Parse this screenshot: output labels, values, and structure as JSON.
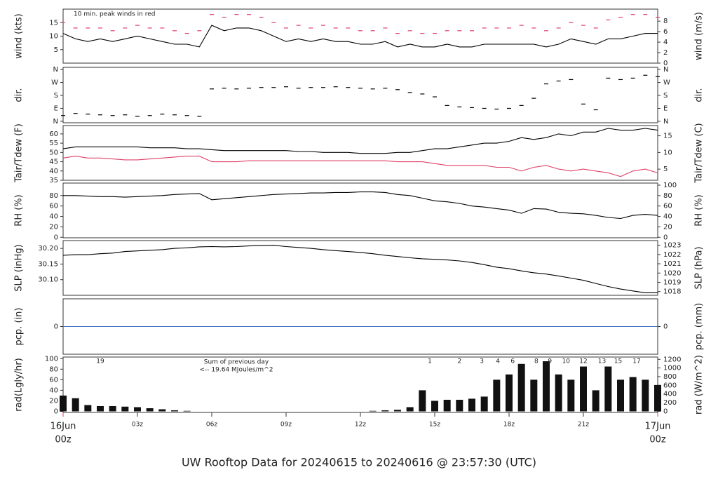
{
  "title": "UW Rooftop Data for 20240615  to  20240616 @ 23:57:30  (UTC)",
  "x_axis": {
    "xlim": [
      0,
      24
    ],
    "xticks": [
      {
        "value": 0,
        "label": "00z"
      },
      {
        "value": 3,
        "label": "03z"
      },
      {
        "value": 6,
        "label": "06z"
      },
      {
        "value": 9,
        "label": "09z"
      },
      {
        "value": 12,
        "label": "12z"
      },
      {
        "value": 15,
        "label": "15z"
      },
      {
        "value": 18,
        "label": "18z"
      },
      {
        "value": 21,
        "label": "21z"
      },
      {
        "value": 24,
        "label": "00z"
      }
    ],
    "date_labels": [
      {
        "x": 0,
        "label": "16Jun"
      },
      {
        "x": 24,
        "label": "17Jun"
      }
    ],
    "date_color": "#e0406a"
  },
  "chart_data": [
    {
      "type": "line",
      "ylabel": "wind (kts)",
      "y2label": "wind (m/s)",
      "annotation": "10 min. peak winds in red",
      "ylim": [
        0,
        20
      ],
      "yticks": [
        5,
        10,
        15
      ],
      "y2lim": [
        0,
        10.29
      ],
      "y2ticks": [
        0,
        2,
        4,
        6,
        8
      ],
      "x": [
        0,
        0.5,
        1,
        1.5,
        2,
        2.5,
        3,
        3.5,
        4,
        4.5,
        5,
        5.5,
        6,
        6.5,
        7,
        7.5,
        8,
        8.5,
        9,
        9.5,
        10,
        10.5,
        11,
        11.5,
        12,
        12.5,
        13,
        13.5,
        14,
        14.5,
        15,
        15.5,
        16,
        16.5,
        17,
        17.5,
        18,
        18.5,
        19,
        19.5,
        20,
        20.5,
        21,
        21.5,
        22,
        22.5,
        23,
        23.5,
        24
      ],
      "series": [
        {
          "color": "#000000",
          "values": [
            11,
            9,
            8,
            9,
            8,
            9,
            10,
            9,
            8,
            7,
            7,
            6,
            14,
            12,
            13,
            13,
            12,
            10,
            8,
            9,
            8,
            9,
            8,
            8,
            7,
            7,
            8,
            6,
            7,
            6,
            6,
            7,
            6,
            6,
            7,
            7,
            7,
            7,
            7,
            6,
            7,
            9,
            8,
            7,
            9,
            9,
            10,
            11,
            11
          ]
        },
        {
          "color": "#e0406a",
          "marker": "dash",
          "values": [
            15,
            13,
            13,
            13,
            12,
            13,
            14,
            13,
            13,
            12,
            11,
            12,
            18,
            17,
            18,
            18,
            17,
            15,
            13,
            14,
            13,
            14,
            13,
            13,
            12,
            12,
            13,
            11,
            12,
            11,
            11,
            12,
            12,
            12,
            13,
            13,
            13,
            14,
            13,
            12,
            13,
            15,
            14,
            13,
            16,
            17,
            18,
            18,
            17
          ]
        }
      ]
    },
    {
      "type": "scatter",
      "ylabel": "dir.",
      "y2label": "dir.",
      "ylim": [
        -10,
        375
      ],
      "yticks": [
        {
          "value": 0,
          "label": "N"
        },
        {
          "value": 90,
          "label": "E"
        },
        {
          "value": 180,
          "label": "S"
        },
        {
          "value": 270,
          "label": "W"
        },
        {
          "value": 360,
          "label": "N"
        }
      ],
      "y2lim": [
        -10,
        375
      ],
      "y2ticks": [
        {
          "value": 0,
          "label": "N"
        },
        {
          "value": 90,
          "label": "E"
        },
        {
          "value": 180,
          "label": "S"
        },
        {
          "value": 270,
          "label": "W"
        },
        {
          "value": 360,
          "label": "N"
        }
      ],
      "x": [
        0,
        0.5,
        1,
        1.5,
        2,
        2.5,
        3,
        3.5,
        4,
        4.5,
        5,
        5.5,
        6,
        6.5,
        7,
        7.5,
        8,
        8.5,
        9,
        9.5,
        10,
        10.5,
        11,
        11.5,
        12,
        12.5,
        13,
        13.5,
        14,
        14.5,
        15,
        15.5,
        16,
        16.5,
        17,
        17.5,
        18,
        18.5,
        19,
        19.5,
        20,
        20.5,
        21,
        21.5,
        22,
        22.5,
        23,
        23.5,
        24
      ],
      "series": [
        {
          "color": "#000000",
          "values": [
            40,
            55,
            50,
            45,
            40,
            45,
            35,
            40,
            50,
            45,
            40,
            35,
            225,
            230,
            225,
            230,
            235,
            235,
            240,
            230,
            235,
            235,
            240,
            235,
            230,
            225,
            230,
            220,
            200,
            190,
            170,
            110,
            100,
            95,
            90,
            85,
            90,
            110,
            160,
            260,
            280,
            290,
            120,
            80,
            300,
            290,
            300,
            320,
            310
          ]
        }
      ]
    },
    {
      "type": "line",
      "ylabel": "Tair/Tdew (F)",
      "y2label": "Tair/Tdew (C)",
      "ylim": [
        35,
        64.5
      ],
      "yticks": [
        35,
        40,
        45,
        50,
        55,
        60
      ],
      "y2lim": [
        1.67,
        18.06
      ],
      "y2ticks": [
        5,
        10,
        15
      ],
      "x": [
        0,
        0.5,
        1,
        1.5,
        2,
        2.5,
        3,
        3.5,
        4,
        4.5,
        5,
        5.5,
        6,
        6.5,
        7,
        7.5,
        8,
        8.5,
        9,
        9.5,
        10,
        10.5,
        11,
        11.5,
        12,
        12.5,
        13,
        13.5,
        14,
        14.5,
        15,
        15.5,
        16,
        16.5,
        17,
        17.5,
        18,
        18.5,
        19,
        19.5,
        20,
        20.5,
        21,
        21.5,
        22,
        22.5,
        23,
        23.5,
        24
      ],
      "series": [
        {
          "color": "#000000",
          "values": [
            52,
            53,
            53,
            53,
            53,
            53,
            53,
            52.5,
            52.5,
            52.5,
            52,
            52,
            51.5,
            51,
            51,
            51,
            51,
            51,
            51,
            50.5,
            50.5,
            50,
            50,
            50,
            49.5,
            49.5,
            49.5,
            50,
            50,
            51,
            52,
            52,
            53,
            54,
            55,
            55,
            56,
            58,
            57,
            58,
            60,
            59,
            61,
            61,
            63,
            62,
            62,
            63,
            62
          ]
        },
        {
          "color": "#e0406a",
          "values": [
            47,
            48,
            47,
            47,
            46.5,
            46,
            46,
            46.5,
            47,
            47.5,
            48,
            48,
            45,
            45,
            45,
            45.5,
            45.5,
            45.5,
            45.5,
            45.5,
            45.5,
            45.5,
            45.5,
            45.5,
            45.5,
            45.5,
            45.5,
            45,
            45,
            45,
            44,
            43,
            43,
            43,
            43,
            42,
            42,
            40,
            42,
            43,
            41,
            40,
            41,
            40,
            39,
            37,
            40,
            41,
            39
          ]
        }
      ]
    },
    {
      "type": "line",
      "ylabel": "RH (%)",
      "y2label": "RH (%)",
      "ylim": [
        -1,
        104
      ],
      "yticks": [
        0,
        20,
        40,
        60,
        80
      ],
      "y2lim": [
        -1,
        104
      ],
      "y2ticks": [
        0,
        20,
        40,
        60,
        80,
        100
      ],
      "x": [
        0,
        0.5,
        1,
        1.5,
        2,
        2.5,
        3,
        3.5,
        4,
        4.5,
        5,
        5.5,
        6,
        6.5,
        7,
        7.5,
        8,
        8.5,
        9,
        9.5,
        10,
        10.5,
        11,
        11.5,
        12,
        12.5,
        13,
        13.5,
        14,
        14.5,
        15,
        15.5,
        16,
        16.5,
        17,
        17.5,
        18,
        18.5,
        19,
        19.5,
        20,
        20.5,
        21,
        21.5,
        22,
        22.5,
        23,
        23.5,
        24
      ],
      "series": [
        {
          "color": "#000000",
          "values": [
            80,
            80,
            79,
            78,
            78,
            77,
            78,
            79,
            80,
            82,
            83,
            84,
            72,
            74,
            76,
            78,
            80,
            82,
            83,
            84,
            85,
            85,
            86,
            86,
            87,
            87,
            86,
            82,
            80,
            75,
            70,
            68,
            65,
            60,
            58,
            55,
            52,
            46,
            55,
            54,
            48,
            46,
            45,
            42,
            38,
            36,
            42,
            44,
            42
          ]
        }
      ]
    },
    {
      "type": "line",
      "ylabel": "SLP (inHg)",
      "y2label": "SLP (hPa)",
      "ylim": [
        30.05,
        30.225
      ],
      "yticks": [
        {
          "value": 30.1,
          "label": "30.10"
        },
        30.15,
        {
          "value": 30.2,
          "label": "30.20"
        }
      ],
      "y2lim": [
        1017.6,
        1023.5
      ],
      "y2ticks": [
        1018,
        1019,
        1020,
        1021,
        1022,
        1023
      ],
      "x": [
        0,
        0.5,
        1,
        1.5,
        2,
        2.5,
        3,
        3.5,
        4,
        4.5,
        5,
        5.5,
        6,
        6.5,
        7,
        7.5,
        8,
        8.5,
        9,
        9.5,
        10,
        10.5,
        11,
        11.5,
        12,
        12.5,
        13,
        13.5,
        14,
        14.5,
        15,
        15.5,
        16,
        16.5,
        17,
        17.5,
        18,
        18.5,
        19,
        19.5,
        20,
        20.5,
        21,
        21.5,
        22,
        22.5,
        23,
        23.5,
        24
      ],
      "series": [
        {
          "color": "#000000",
          "values": [
            30.178,
            30.18,
            30.18,
            30.183,
            30.185,
            30.19,
            30.192,
            30.194,
            30.196,
            30.2,
            30.202,
            30.205,
            30.206,
            30.205,
            30.206,
            30.208,
            30.209,
            30.21,
            30.206,
            30.203,
            30.2,
            30.196,
            30.193,
            30.19,
            30.187,
            30.183,
            30.178,
            30.174,
            30.17,
            30.167,
            30.165,
            30.163,
            30.16,
            30.155,
            30.148,
            30.14,
            30.135,
            30.128,
            30.122,
            30.118,
            30.112,
            30.105,
            30.098,
            30.088,
            30.078,
            30.07,
            30.064,
            30.058,
            30.058
          ]
        }
      ]
    },
    {
      "type": "line",
      "ylabel": "pcp. (in)",
      "y2label": "pcp. (mm)",
      "ylim": [
        -1,
        1
      ],
      "yticks": [
        0
      ],
      "y2lim": [
        -25.4,
        25.4
      ],
      "y2ticks": [
        0
      ],
      "x": [
        0,
        24
      ],
      "series": [
        {
          "color": "#4472c4",
          "values": [
            0,
            0
          ]
        }
      ]
    },
    {
      "type": "bar",
      "ylabel": "rad(Lgly/hr)",
      "y2label": "rad (W/m^2)",
      "annotations": [
        "Sum of previous day",
        "<-- 19.64 MJoules/m^2"
      ],
      "annotation_color": "#9933cc",
      "hour_marks": [
        {
          "x": 1.5,
          "label": "19"
        },
        {
          "x": 14.8,
          "label": "1"
        },
        {
          "x": 16.0,
          "label": "2"
        },
        {
          "x": 16.9,
          "label": "3"
        },
        {
          "x": 17.55,
          "label": "4"
        },
        {
          "x": 18.15,
          "label": "6"
        },
        {
          "x": 19.1,
          "label": "8"
        },
        {
          "x": 19.65,
          "label": "9"
        },
        {
          "x": 20.3,
          "label": "10"
        },
        {
          "x": 21.0,
          "label": "12"
        },
        {
          "x": 21.75,
          "label": "13"
        },
        {
          "x": 22.4,
          "label": "15"
        },
        {
          "x": 23.15,
          "label": "17"
        }
      ],
      "ylim": [
        -2,
        103
      ],
      "yticks": [
        0,
        20,
        40,
        60,
        80,
        100
      ],
      "y2lim": [
        -27,
        1253
      ],
      "y2ticks": [
        0,
        200,
        400,
        600,
        800,
        1000,
        1200
      ],
      "x": [
        0,
        0.5,
        1,
        1.5,
        2,
        2.5,
        3,
        3.5,
        4,
        4.5,
        5,
        5.5,
        6,
        6.5,
        7,
        7.5,
        8,
        8.5,
        9,
        9.5,
        10,
        10.5,
        11,
        11.5,
        12,
        12.5,
        13,
        13.5,
        14,
        14.5,
        15,
        15.5,
        16,
        16.5,
        17,
        17.5,
        18,
        18.5,
        19,
        19.5,
        20,
        20.5,
        21,
        21.5,
        22,
        22.5,
        23,
        23.5,
        24
      ],
      "series": [
        {
          "color": "#111111",
          "values": [
            30,
            25,
            12,
            10,
            10,
            9,
            8,
            6,
            4,
            2,
            1,
            0,
            0,
            0,
            0,
            0,
            0,
            0,
            0,
            0,
            0,
            0,
            0,
            0,
            0,
            1,
            2,
            3,
            8,
            40,
            20,
            22,
            22,
            24,
            28,
            60,
            70,
            90,
            60,
            95,
            70,
            60,
            85,
            40,
            85,
            60,
            65,
            60,
            50
          ]
        }
      ]
    }
  ]
}
